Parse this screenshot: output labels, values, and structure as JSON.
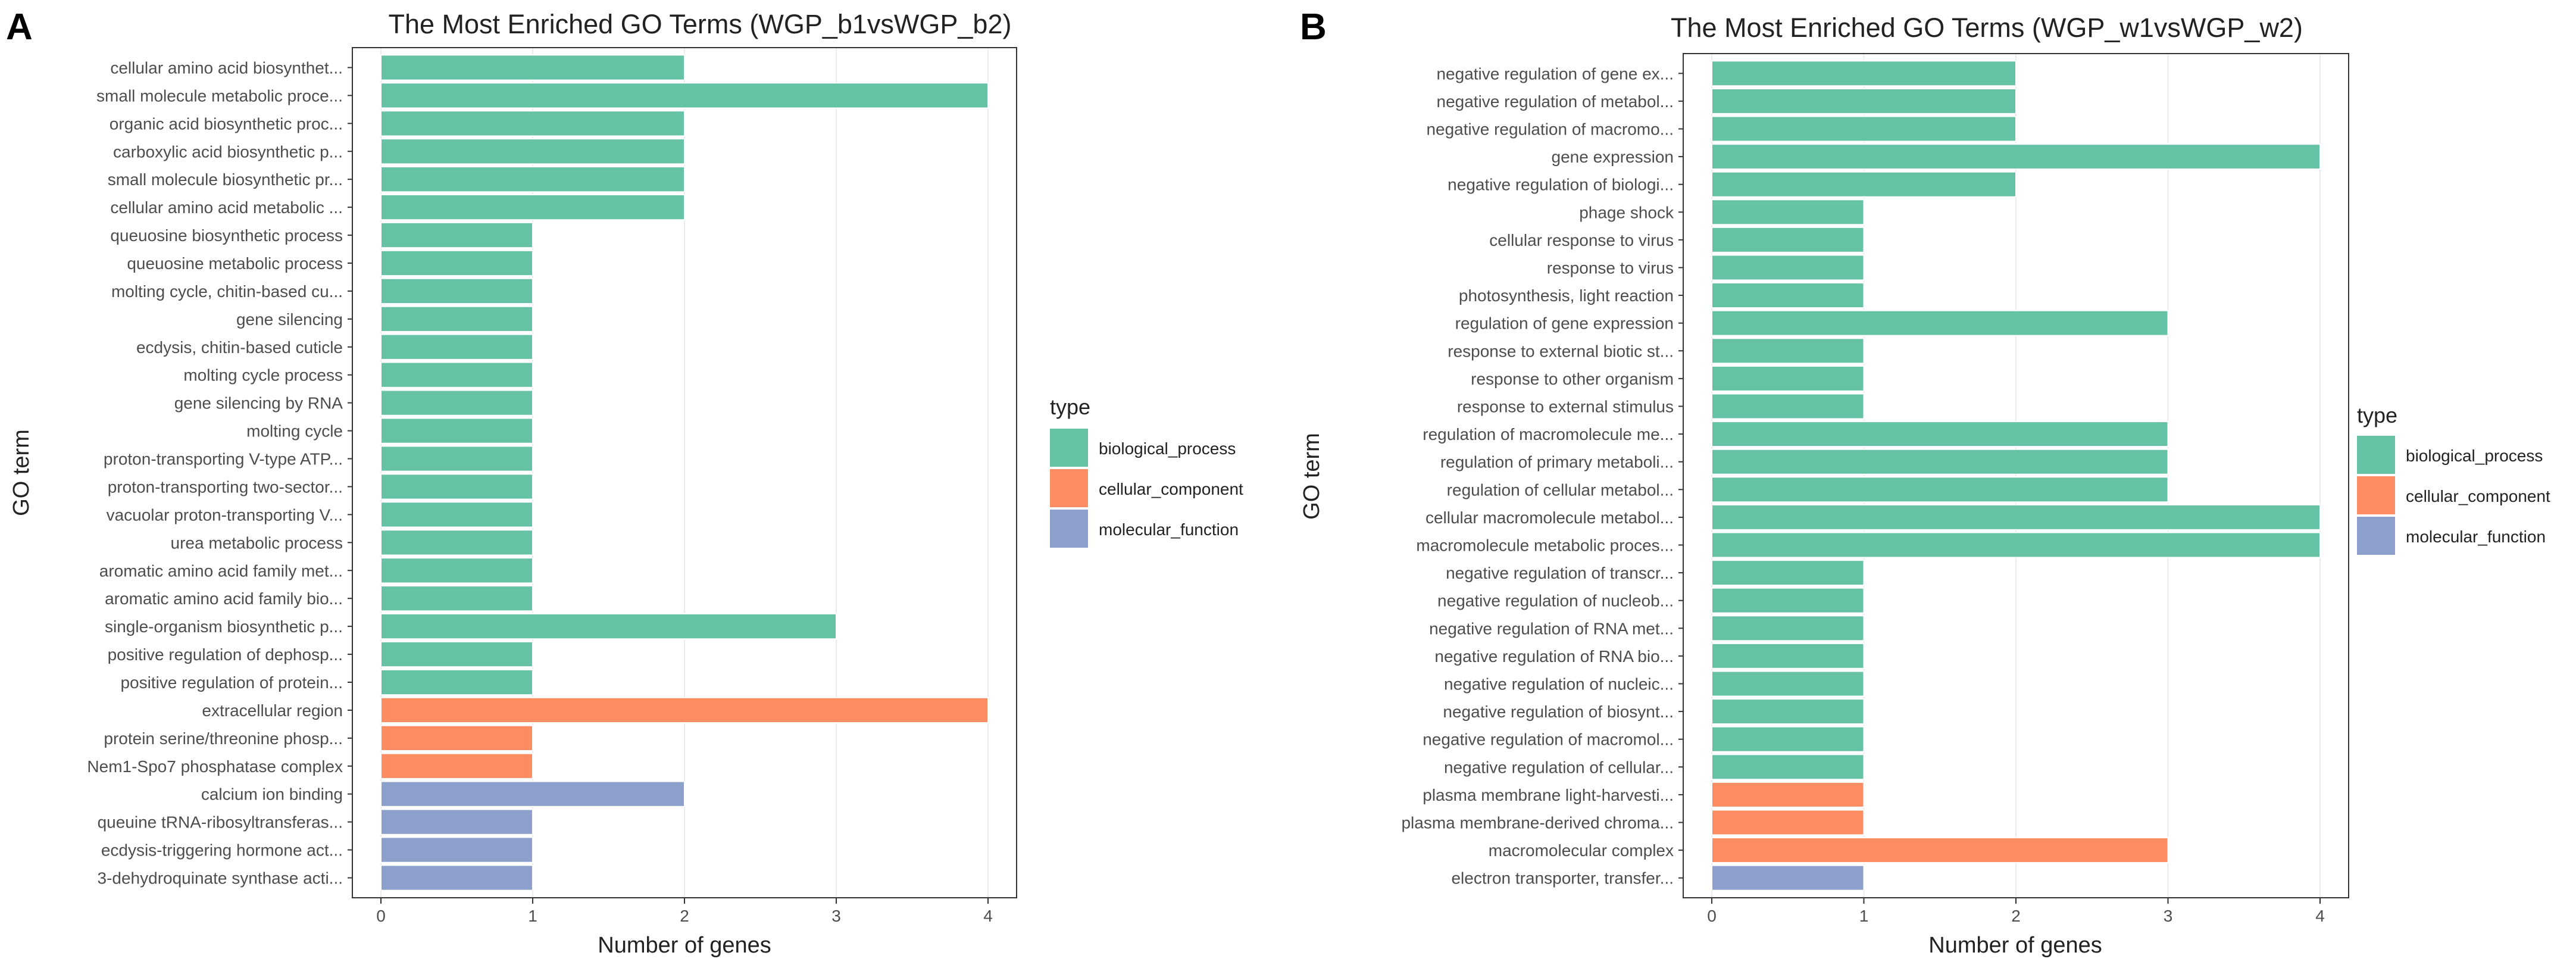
{
  "type_colors": {
    "biological_process": "#66c2a5",
    "cellular_component": "#fc8d62",
    "molecular_function": "#8da0cb"
  },
  "chart_data": [
    {
      "panel_label": "A",
      "type": "bar",
      "orientation": "horizontal",
      "title": "The Most Enriched GO Terms (WGP_b1vsWGP_b2)",
      "xlabel": "Number of genes",
      "ylabel": "GO term",
      "xlim": [
        0,
        4
      ],
      "xticks": [
        "0",
        "1",
        "2",
        "3",
        "4"
      ],
      "legend_title": "type",
      "legend": [
        "biological_process",
        "cellular_component",
        "molecular_function"
      ],
      "categories": [
        "cellular amino acid biosynthet...",
        "small molecule metabolic proce...",
        "organic acid biosynthetic proc...",
        "carboxylic acid biosynthetic p...",
        "small molecule biosynthetic pr...",
        "cellular amino acid metabolic ...",
        "queuosine biosynthetic process",
        "queuosine metabolic process",
        "molting cycle, chitin-based cu...",
        "gene silencing",
        "ecdysis, chitin-based cuticle",
        "molting cycle process",
        "gene silencing by RNA",
        "molting cycle",
        "proton-transporting V-type ATP...",
        "proton-transporting two-sector...",
        "vacuolar proton-transporting V...",
        "urea metabolic process",
        "aromatic amino acid family met...",
        "aromatic amino acid family bio...",
        "single-organism biosynthetic p...",
        "positive regulation of dephosp...",
        "positive regulation of protein...",
        "extracellular region",
        "protein serine/threonine phosp...",
        "Nem1-Spo7 phosphatase complex",
        "calcium ion binding",
        "queuine tRNA-ribosyltransferas...",
        "ecdysis-triggering hormone act...",
        "3-dehydroquinate synthase acti..."
      ],
      "values": [
        2,
        4,
        2,
        2,
        2,
        2,
        1,
        1,
        1,
        1,
        1,
        1,
        1,
        1,
        1,
        1,
        1,
        1,
        1,
        1,
        3,
        1,
        1,
        4,
        1,
        1,
        2,
        1,
        1,
        1
      ],
      "types": [
        "biological_process",
        "biological_process",
        "biological_process",
        "biological_process",
        "biological_process",
        "biological_process",
        "biological_process",
        "biological_process",
        "biological_process",
        "biological_process",
        "biological_process",
        "biological_process",
        "biological_process",
        "biological_process",
        "biological_process",
        "biological_process",
        "biological_process",
        "biological_process",
        "biological_process",
        "biological_process",
        "biological_process",
        "biological_process",
        "biological_process",
        "cellular_component",
        "cellular_component",
        "cellular_component",
        "molecular_function",
        "molecular_function",
        "molecular_function",
        "molecular_function"
      ]
    },
    {
      "panel_label": "B",
      "type": "bar",
      "orientation": "horizontal",
      "title": "The Most Enriched GO Terms (WGP_w1vsWGP_w2)",
      "xlabel": "Number of genes",
      "ylabel": "GO term",
      "xlim": [
        0,
        4
      ],
      "xticks": [
        "0",
        "1",
        "2",
        "3",
        "4"
      ],
      "legend_title": "type",
      "legend": [
        "biological_process",
        "cellular_component",
        "molecular_function"
      ],
      "categories": [
        "negative regulation of gene ex...",
        "negative regulation of metabol...",
        "negative regulation of macromo...",
        "gene expression",
        "negative regulation of biologi...",
        "phage shock",
        "cellular response to virus",
        "response to virus",
        "photosynthesis, light reaction",
        "regulation of gene expression",
        "response to external biotic st...",
        "response to other organism",
        "response to external stimulus",
        "regulation of macromolecule me...",
        "regulation of primary metaboli...",
        "regulation of cellular metabol...",
        "cellular macromolecule metabol...",
        "macromolecule metabolic proces...",
        "negative regulation of transcr...",
        "negative regulation of nucleob...",
        "negative regulation of RNA met...",
        "negative regulation of RNA bio...",
        "negative regulation of nucleic...",
        "negative regulation of biosynt...",
        "negative regulation of macromol...",
        "negative regulation of cellular...",
        "plasma membrane light-harvesti...",
        "plasma membrane-derived chroma...",
        "macromolecular complex",
        "electron transporter, transfer..."
      ],
      "values": [
        2,
        2,
        2,
        4,
        2,
        1,
        1,
        1,
        1,
        3,
        1,
        1,
        1,
        3,
        3,
        3,
        4,
        4,
        1,
        1,
        1,
        1,
        1,
        1,
        1,
        1,
        1,
        1,
        3,
        1
      ],
      "types": [
        "biological_process",
        "biological_process",
        "biological_process",
        "biological_process",
        "biological_process",
        "biological_process",
        "biological_process",
        "biological_process",
        "biological_process",
        "biological_process",
        "biological_process",
        "biological_process",
        "biological_process",
        "biological_process",
        "biological_process",
        "biological_process",
        "biological_process",
        "biological_process",
        "biological_process",
        "biological_process",
        "biological_process",
        "biological_process",
        "biological_process",
        "biological_process",
        "biological_process",
        "biological_process",
        "cellular_component",
        "cellular_component",
        "cellular_component",
        "molecular_function"
      ]
    }
  ]
}
